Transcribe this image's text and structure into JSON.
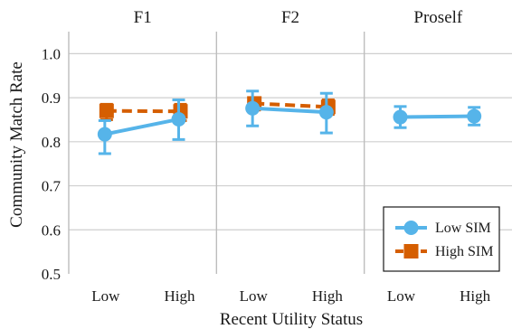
{
  "chart_data": {
    "type": "line",
    "ylabel": "Community Match Rate",
    "xlabel": "Recent Utility Status",
    "ylim": [
      0.5,
      1.05
    ],
    "yticks": [
      "0.5",
      "0.6",
      "0.7",
      "0.8",
      "0.9",
      "1.0"
    ],
    "ytick_values": [
      0.5,
      0.6,
      0.7,
      0.8,
      0.9,
      1.0
    ],
    "categories": [
      "Low",
      "High"
    ],
    "grid": "horizontal",
    "legend_position": "bottom-right",
    "panels": [
      {
        "title": "F1",
        "series": [
          {
            "name": "Low SIM",
            "values": [
              0.817,
              0.851
            ],
            "err_low": [
              0.773,
              0.805
            ],
            "err_high": [
              0.848,
              0.895
            ]
          },
          {
            "name": "High SIM",
            "values": [
              0.87,
              0.869
            ],
            "err_low": [
              0.85,
              0.848
            ],
            "err_high": [
              0.885,
              0.885
            ]
          }
        ]
      },
      {
        "title": "F2",
        "series": [
          {
            "name": "Low SIM",
            "values": [
              0.876,
              0.867
            ],
            "err_low": [
              0.836,
              0.82
            ],
            "err_high": [
              0.915,
              0.91
            ]
          },
          {
            "name": "High SIM",
            "values": [
              0.887,
              0.879
            ],
            "err_low": [
              0.872,
              0.862
            ],
            "err_high": [
              0.9,
              0.895
            ]
          }
        ]
      },
      {
        "title": "Proself",
        "series": [
          {
            "name": "Low SIM",
            "values": [
              0.856,
              0.858
            ],
            "err_low": [
              0.832,
              0.838
            ],
            "err_high": [
              0.88,
              0.878
            ]
          }
        ]
      }
    ],
    "legend": [
      {
        "name": "Low SIM",
        "color": "#56b4e9",
        "marker": "circle",
        "line": "solid"
      },
      {
        "name": "High SIM",
        "color": "#d55e00",
        "marker": "square",
        "line": "dashed"
      }
    ]
  }
}
